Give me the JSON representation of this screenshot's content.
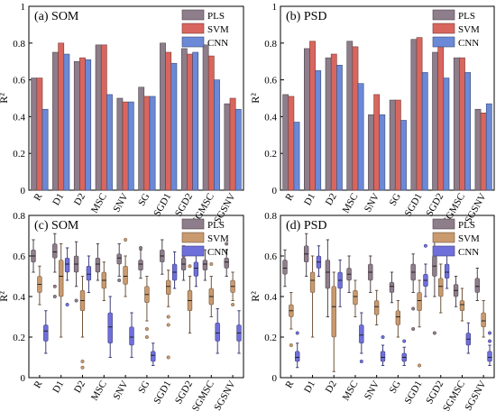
{
  "chart_data": [
    {
      "type": "bar",
      "title": "(a) SOM",
      "ylabel": "R²",
      "ylim": [
        0,
        1.0
      ],
      "yticks": [
        0,
        0.2,
        0.4,
        0.6,
        0.8,
        1.0
      ],
      "grid": false,
      "legend_position": "top-right",
      "categories": [
        "R",
        "D1",
        "D2",
        "MSC",
        "SNV",
        "SG",
        "SGD1",
        "SGD2",
        "SGMSC",
        "SGSNV"
      ],
      "series": [
        {
          "name": "PLS",
          "color": "#8e7d8a",
          "values": [
            0.61,
            0.75,
            0.7,
            0.79,
            0.5,
            0.56,
            0.8,
            0.77,
            0.79,
            0.47
          ]
        },
        {
          "name": "SVM",
          "color": "#d9665e",
          "values": [
            0.61,
            0.8,
            0.72,
            0.79,
            0.48,
            0.51,
            0.75,
            0.74,
            0.73,
            0.5
          ]
        },
        {
          "name": "CNN",
          "color": "#6b89d6",
          "values": [
            0.44,
            0.74,
            0.71,
            0.52,
            0.48,
            0.51,
            0.69,
            0.75,
            0.6,
            0.44
          ]
        }
      ]
    },
    {
      "type": "bar",
      "title": "(b) PSD",
      "ylabel": "R²",
      "ylim": [
        0,
        1.0
      ],
      "yticks": [
        0,
        0.2,
        0.4,
        0.6,
        0.8,
        1.0
      ],
      "grid": false,
      "legend_position": "top-right",
      "categories": [
        "R",
        "D1",
        "D2",
        "MSC",
        "SNV",
        "SG",
        "SGD1",
        "SGD2",
        "SGMSC",
        "SGSNV"
      ],
      "series": [
        {
          "name": "PLS",
          "color": "#8e7d8a",
          "values": [
            0.52,
            0.77,
            0.72,
            0.81,
            0.41,
            0.49,
            0.82,
            0.75,
            0.72,
            0.44
          ]
        },
        {
          "name": "SVM",
          "color": "#d9665e",
          "values": [
            0.51,
            0.81,
            0.74,
            0.78,
            0.52,
            0.49,
            0.83,
            0.81,
            0.72,
            0.42
          ]
        },
        {
          "name": "CNN",
          "color": "#6b89d6",
          "values": [
            0.37,
            0.65,
            0.68,
            0.58,
            0.41,
            0.38,
            0.64,
            0.61,
            0.64,
            0.47
          ]
        }
      ]
    },
    {
      "type": "box",
      "title": "(c) SOM",
      "ylabel": "R²",
      "ylim": [
        0,
        0.8
      ],
      "yticks": [
        0,
        0.2,
        0.4,
        0.6,
        0.8
      ],
      "grid": false,
      "legend_position": "top-right",
      "categories": [
        "R",
        "D1",
        "D2",
        "MSC",
        "SNV",
        "SG",
        "SGD1",
        "SGD2",
        "SGMSC",
        "SGSNV"
      ],
      "series": [
        {
          "name": "PLS",
          "color": "#8e7d8a",
          "boxes": [
            {
              "min": 0.52,
              "q1": 0.57,
              "median": 0.6,
              "q3": 0.63,
              "max": 0.68,
              "outliers": []
            },
            {
              "min": 0.52,
              "q1": 0.59,
              "median": 0.62,
              "q3": 0.66,
              "max": 0.71,
              "outliers": [
                0.45,
                0.4
              ]
            },
            {
              "min": 0.45,
              "q1": 0.52,
              "median": 0.56,
              "q3": 0.6,
              "max": 0.67,
              "outliers": [
                0.38
              ]
            },
            {
              "min": 0.48,
              "q1": 0.52,
              "median": 0.56,
              "q3": 0.59,
              "max": 0.66,
              "outliers": []
            },
            {
              "min": 0.5,
              "q1": 0.56,
              "median": 0.59,
              "q3": 0.61,
              "max": 0.66,
              "outliers": [
                0.48
              ]
            },
            {
              "min": 0.49,
              "q1": 0.53,
              "median": 0.56,
              "q3": 0.58,
              "max": 0.63,
              "outliers": [
                0.64
              ]
            },
            {
              "min": 0.51,
              "q1": 0.57,
              "median": 0.6,
              "q3": 0.63,
              "max": 0.68,
              "outliers": []
            },
            {
              "min": 0.48,
              "q1": 0.53,
              "median": 0.56,
              "q3": 0.59,
              "max": 0.65,
              "outliers": [
                0.6
              ]
            },
            {
              "min": 0.48,
              "q1": 0.53,
              "median": 0.56,
              "q3": 0.58,
              "max": 0.63,
              "outliers": []
            },
            {
              "min": 0.5,
              "q1": 0.54,
              "median": 0.57,
              "q3": 0.59,
              "max": 0.63,
              "outliers": [
                0.66
              ]
            }
          ]
        },
        {
          "name": "SVM",
          "color": "#c99a6e",
          "boxes": [
            {
              "min": 0.36,
              "q1": 0.42,
              "median": 0.46,
              "q3": 0.5,
              "max": 0.55,
              "outliers": []
            },
            {
              "min": 0.2,
              "q1": 0.4,
              "median": 0.5,
              "q3": 0.58,
              "max": 0.66,
              "outliers": []
            },
            {
              "min": 0.2,
              "q1": 0.33,
              "median": 0.38,
              "q3": 0.43,
              "max": 0.5,
              "outliers": [
                0.08,
                0.05
              ]
            },
            {
              "min": 0.38,
              "q1": 0.44,
              "median": 0.48,
              "q3": 0.52,
              "max": 0.57,
              "outliers": []
            },
            {
              "min": 0.4,
              "q1": 0.46,
              "median": 0.5,
              "q3": 0.55,
              "max": 0.6,
              "outliers": [
                0.68
              ]
            },
            {
              "min": 0.28,
              "q1": 0.37,
              "median": 0.41,
              "q3": 0.45,
              "max": 0.5,
              "outliers": [
                0.24,
                0.2
              ]
            },
            {
              "min": 0.35,
              "q1": 0.41,
              "median": 0.45,
              "q3": 0.48,
              "max": 0.53,
              "outliers": [
                0.3,
                0.26,
                0.1
              ]
            },
            {
              "min": 0.22,
              "q1": 0.33,
              "median": 0.38,
              "q3": 0.43,
              "max": 0.5,
              "outliers": [
                0.55
              ]
            },
            {
              "min": 0.3,
              "q1": 0.36,
              "median": 0.4,
              "q3": 0.44,
              "max": 0.5,
              "outliers": [
                0.56
              ]
            },
            {
              "min": 0.38,
              "q1": 0.42,
              "median": 0.45,
              "q3": 0.48,
              "max": 0.52,
              "outliers": [
                0.36
              ]
            }
          ]
        },
        {
          "name": "CNN",
          "color": "#6f6fdc",
          "boxes": [
            {
              "min": 0.12,
              "q1": 0.18,
              "median": 0.23,
              "q3": 0.26,
              "max": 0.33,
              "outliers": []
            },
            {
              "min": 0.48,
              "q1": 0.52,
              "median": 0.56,
              "q3": 0.59,
              "max": 0.64,
              "outliers": [
                0.36
              ]
            },
            {
              "min": 0.42,
              "q1": 0.48,
              "median": 0.51,
              "q3": 0.55,
              "max": 0.6,
              "outliers": []
            },
            {
              "min": 0.1,
              "q1": 0.17,
              "median": 0.25,
              "q3": 0.32,
              "max": 0.4,
              "outliers": []
            },
            {
              "min": 0.1,
              "q1": 0.16,
              "median": 0.2,
              "q3": 0.25,
              "max": 0.32,
              "outliers": []
            },
            {
              "min": 0.06,
              "q1": 0.08,
              "median": 0.11,
              "q3": 0.13,
              "max": 0.17,
              "outliers": []
            },
            {
              "min": 0.44,
              "q1": 0.48,
              "median": 0.52,
              "q3": 0.56,
              "max": 0.62,
              "outliers": []
            },
            {
              "min": 0.45,
              "q1": 0.5,
              "median": 0.54,
              "q3": 0.57,
              "max": 0.62,
              "outliers": []
            },
            {
              "min": 0.12,
              "q1": 0.18,
              "median": 0.22,
              "q3": 0.27,
              "max": 0.34,
              "outliers": []
            },
            {
              "min": 0.12,
              "q1": 0.18,
              "median": 0.22,
              "q3": 0.26,
              "max": 0.33,
              "outliers": []
            }
          ]
        }
      ]
    },
    {
      "type": "box",
      "title": "(d) PSD",
      "ylabel": "R²",
      "ylim": [
        0,
        0.8
      ],
      "yticks": [
        0,
        0.2,
        0.4,
        0.6,
        0.8
      ],
      "grid": false,
      "legend_position": "top-right",
      "categories": [
        "R",
        "D1",
        "D2",
        "MSC",
        "SNV",
        "SG",
        "SGD1",
        "SGD2",
        "SGMSC",
        "SGSNV"
      ],
      "series": [
        {
          "name": "PLS",
          "color": "#8e7d8a",
          "boxes": [
            {
              "min": 0.45,
              "q1": 0.51,
              "median": 0.54,
              "q3": 0.58,
              "max": 0.63,
              "outliers": []
            },
            {
              "min": 0.5,
              "q1": 0.57,
              "median": 0.61,
              "q3": 0.65,
              "max": 0.71,
              "outliers": []
            },
            {
              "min": 0.3,
              "q1": 0.44,
              "median": 0.52,
              "q3": 0.58,
              "max": 0.68,
              "outliers": []
            },
            {
              "min": 0.42,
              "q1": 0.48,
              "median": 0.51,
              "q3": 0.54,
              "max": 0.6,
              "outliers": []
            },
            {
              "min": 0.42,
              "q1": 0.48,
              "median": 0.52,
              "q3": 0.56,
              "max": 0.6,
              "outliers": []
            },
            {
              "min": 0.37,
              "q1": 0.42,
              "median": 0.45,
              "q3": 0.47,
              "max": 0.52,
              "outliers": []
            },
            {
              "min": 0.42,
              "q1": 0.48,
              "median": 0.52,
              "q3": 0.56,
              "max": 0.61,
              "outliers": [
                0.24,
                0.34
              ]
            },
            {
              "min": 0.4,
              "q1": 0.5,
              "median": 0.55,
              "q3": 0.6,
              "max": 0.68,
              "outliers": [
                0.22
              ]
            },
            {
              "min": 0.35,
              "q1": 0.4,
              "median": 0.43,
              "q3": 0.46,
              "max": 0.5,
              "outliers": []
            },
            {
              "min": 0.38,
              "q1": 0.42,
              "median": 0.45,
              "q3": 0.49,
              "max": 0.54,
              "outliers": []
            }
          ]
        },
        {
          "name": "SVM",
          "color": "#c99a6e",
          "boxes": [
            {
              "min": 0.24,
              "q1": 0.3,
              "median": 0.33,
              "q3": 0.36,
              "max": 0.42,
              "outliers": [
                0.16
              ]
            },
            {
              "min": 0.2,
              "q1": 0.42,
              "median": 0.48,
              "q3": 0.52,
              "max": 0.6,
              "outliers": []
            },
            {
              "min": 0.03,
              "q1": 0.2,
              "median": 0.35,
              "q3": 0.45,
              "max": 0.52,
              "outliers": []
            },
            {
              "min": 0.3,
              "q1": 0.36,
              "median": 0.4,
              "q3": 0.43,
              "max": 0.48,
              "outliers": []
            },
            {
              "min": 0.26,
              "q1": 0.31,
              "median": 0.35,
              "q3": 0.38,
              "max": 0.43,
              "outliers": []
            },
            {
              "min": 0.2,
              "q1": 0.26,
              "median": 0.3,
              "q3": 0.33,
              "max": 0.38,
              "outliers": []
            },
            {
              "min": 0.25,
              "q1": 0.33,
              "median": 0.38,
              "q3": 0.42,
              "max": 0.48,
              "outliers": [
                0.06
              ]
            },
            {
              "min": 0.32,
              "q1": 0.4,
              "median": 0.45,
              "q3": 0.49,
              "max": 0.56,
              "outliers": []
            },
            {
              "min": 0.28,
              "q1": 0.33,
              "median": 0.36,
              "q3": 0.38,
              "max": 0.44,
              "outliers": []
            },
            {
              "min": 0.2,
              "q1": 0.25,
              "median": 0.28,
              "q3": 0.32,
              "max": 0.38,
              "outliers": []
            }
          ]
        },
        {
          "name": "CNN",
          "color": "#6f6fdc",
          "boxes": [
            {
              "min": 0.05,
              "q1": 0.08,
              "median": 0.1,
              "q3": 0.13,
              "max": 0.17,
              "outliers": [
                0.22
              ]
            },
            {
              "min": 0.5,
              "q1": 0.54,
              "median": 0.57,
              "q3": 0.6,
              "max": 0.65,
              "outliers": []
            },
            {
              "min": 0.35,
              "q1": 0.44,
              "median": 0.48,
              "q3": 0.52,
              "max": 0.58,
              "outliers": []
            },
            {
              "min": 0.12,
              "q1": 0.17,
              "median": 0.21,
              "q3": 0.26,
              "max": 0.32,
              "outliers": [
                0.08
              ]
            },
            {
              "min": 0.06,
              "q1": 0.08,
              "median": 0.1,
              "q3": 0.13,
              "max": 0.16,
              "outliers": [
                0.2
              ]
            },
            {
              "min": 0.06,
              "q1": 0.08,
              "median": 0.1,
              "q3": 0.12,
              "max": 0.15,
              "outliers": [
                0.18
              ]
            },
            {
              "min": 0.4,
              "q1": 0.45,
              "median": 0.48,
              "q3": 0.51,
              "max": 0.56,
              "outliers": [
                0.65
              ]
            },
            {
              "min": 0.44,
              "q1": 0.49,
              "median": 0.52,
              "q3": 0.56,
              "max": 0.62,
              "outliers": []
            },
            {
              "min": 0.12,
              "q1": 0.16,
              "median": 0.19,
              "q3": 0.22,
              "max": 0.27,
              "outliers": []
            },
            {
              "min": 0.06,
              "q1": 0.08,
              "median": 0.1,
              "q3": 0.13,
              "max": 0.16,
              "outliers": [
                0.18,
                0.22
              ]
            }
          ]
        }
      ]
    }
  ]
}
